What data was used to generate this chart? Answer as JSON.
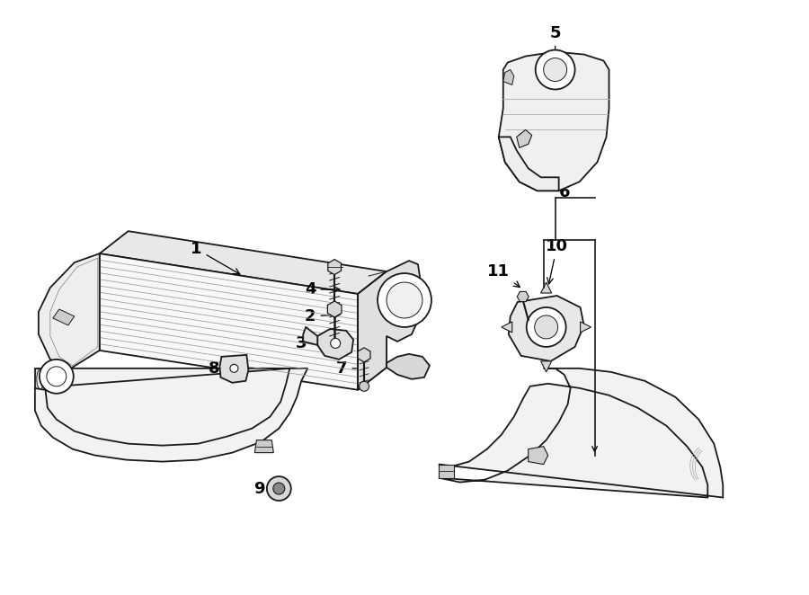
{
  "bg_color": "#ffffff",
  "line_color": "#1a1a1a",
  "lw": 1.3,
  "thin_lw": 0.7,
  "fig_w": 9.0,
  "fig_h": 6.62,
  "dpi": 100,
  "label_fontsize": 13,
  "label_bold": true,
  "labels": {
    "1": [
      1.95,
      3.7,
      2.3,
      3.4
    ],
    "2": [
      3.45,
      3.1,
      3.72,
      3.1
    ],
    "3": [
      3.38,
      2.8,
      3.65,
      2.8
    ],
    "4": [
      3.45,
      3.2,
      3.72,
      3.2
    ],
    "5": [
      5.9,
      6.25,
      5.9,
      6.0
    ],
    "6": [
      6.18,
      4.48,
      6.18,
      4.48
    ],
    "7": [
      3.8,
      2.52,
      4.05,
      2.52
    ],
    "8": [
      2.38,
      2.52,
      2.6,
      2.52
    ],
    "9": [
      2.88,
      1.18,
      3.1,
      1.18
    ],
    "10": [
      6.1,
      3.85,
      6.1,
      3.6
    ],
    "11": [
      5.6,
      3.95,
      5.8,
      3.75
    ]
  }
}
